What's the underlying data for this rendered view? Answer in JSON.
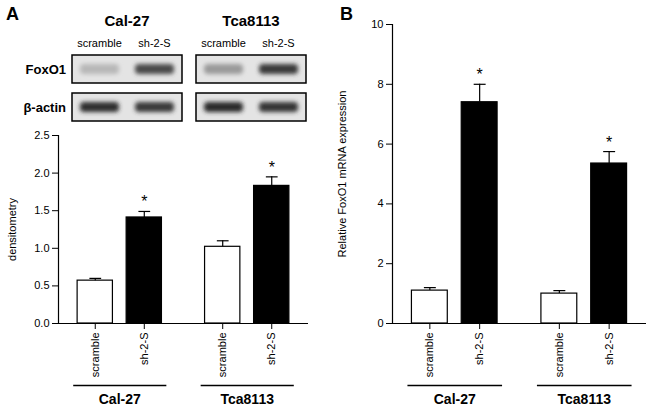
{
  "chart_data": [
    {
      "type": "bar",
      "title": "A",
      "categories": [
        "scramble",
        "sh-2-S",
        "scramble",
        "sh-2-S"
      ],
      "groups": [
        {
          "label": "Cal-27",
          "indices": [
            0,
            1
          ]
        },
        {
          "label": "Tca8113",
          "indices": [
            2,
            3
          ]
        }
      ],
      "values": [
        0.57,
        1.41,
        1.02,
        1.83
      ],
      "errors": [
        0.03,
        0.08,
        0.08,
        0.12
      ],
      "colors": [
        "#ffffff",
        "#000000",
        "#ffffff",
        "#000000"
      ],
      "ylabel": "densitometry",
      "ylim": [
        0,
        2.5
      ],
      "yticks": [
        {
          "value": 0,
          "label": "0.0"
        },
        {
          "value": 0.5,
          "label": "0.5"
        },
        {
          "value": 1,
          "label": "1.0"
        },
        {
          "value": 1.5,
          "label": "1.5"
        },
        {
          "value": 2,
          "label": "2.0"
        },
        {
          "value": 2.5,
          "label": "2.5"
        }
      ],
      "annotations": [
        {
          "text": "*",
          "index": 1
        },
        {
          "text": "*",
          "index": 3
        }
      ]
    },
    {
      "type": "bar",
      "title": "B",
      "categories": [
        "scramble",
        "sh-2-S",
        "scramble",
        "sh-2-S"
      ],
      "groups": [
        {
          "label": "Cal-27",
          "indices": [
            0,
            1
          ]
        },
        {
          "label": "Tca8113",
          "indices": [
            2,
            3
          ]
        }
      ],
      "values": [
        1.1,
        7.4,
        1.0,
        5.35
      ],
      "errors": [
        0.1,
        0.6,
        0.1,
        0.4
      ],
      "colors": [
        "#ffffff",
        "#000000",
        "#ffffff",
        "#000000"
      ],
      "ylabel": "Relative FoxO1 mRNA expression",
      "ylim": [
        0,
        10
      ],
      "yticks": [
        0,
        2,
        4,
        6,
        8,
        10
      ],
      "annotations": [
        {
          "text": "*",
          "index": 1
        },
        {
          "text": "*",
          "index": 3
        }
      ]
    }
  ],
  "blot": {
    "groups": [
      {
        "label": "Cal-27",
        "lanes": [
          "scramble",
          "sh-2-S"
        ]
      },
      {
        "label": "Tca8113",
        "lanes": [
          "scramble",
          "sh-2-S"
        ]
      }
    ],
    "rows": [
      "FoxO1",
      "β-actin"
    ]
  }
}
